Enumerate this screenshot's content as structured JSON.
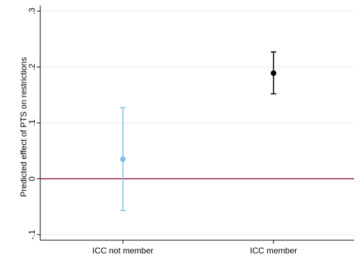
{
  "chart_data": {
    "type": "scatter",
    "title": "",
    "xlabel": "",
    "ylabel": "Predicted effect of PTS on restrictions",
    "categories": [
      "ICC not member",
      "ICC member"
    ],
    "ylim": [
      -0.11,
      0.31
    ],
    "y_ticks": [
      -0.1,
      0,
      0.1,
      0.2,
      0.3
    ],
    "y_tick_labels": [
      "-.1",
      "0",
      ".1",
      ".2",
      ".3"
    ],
    "grid": true,
    "legend": "none",
    "reference_line": {
      "y": 0,
      "color": "#8b1a3a"
    },
    "series": [
      {
        "category": "ICC not member",
        "estimate": 0.035,
        "ci_low": -0.057,
        "ci_high": 0.127,
        "color": "#7fbfe6"
      },
      {
        "category": "ICC member",
        "estimate": 0.189,
        "ci_low": 0.152,
        "ci_high": 0.227,
        "color": "#000000"
      }
    ],
    "colors": {
      "axis": "#000000",
      "grid": "#eaeaea",
      "background": "#ffffff"
    }
  }
}
